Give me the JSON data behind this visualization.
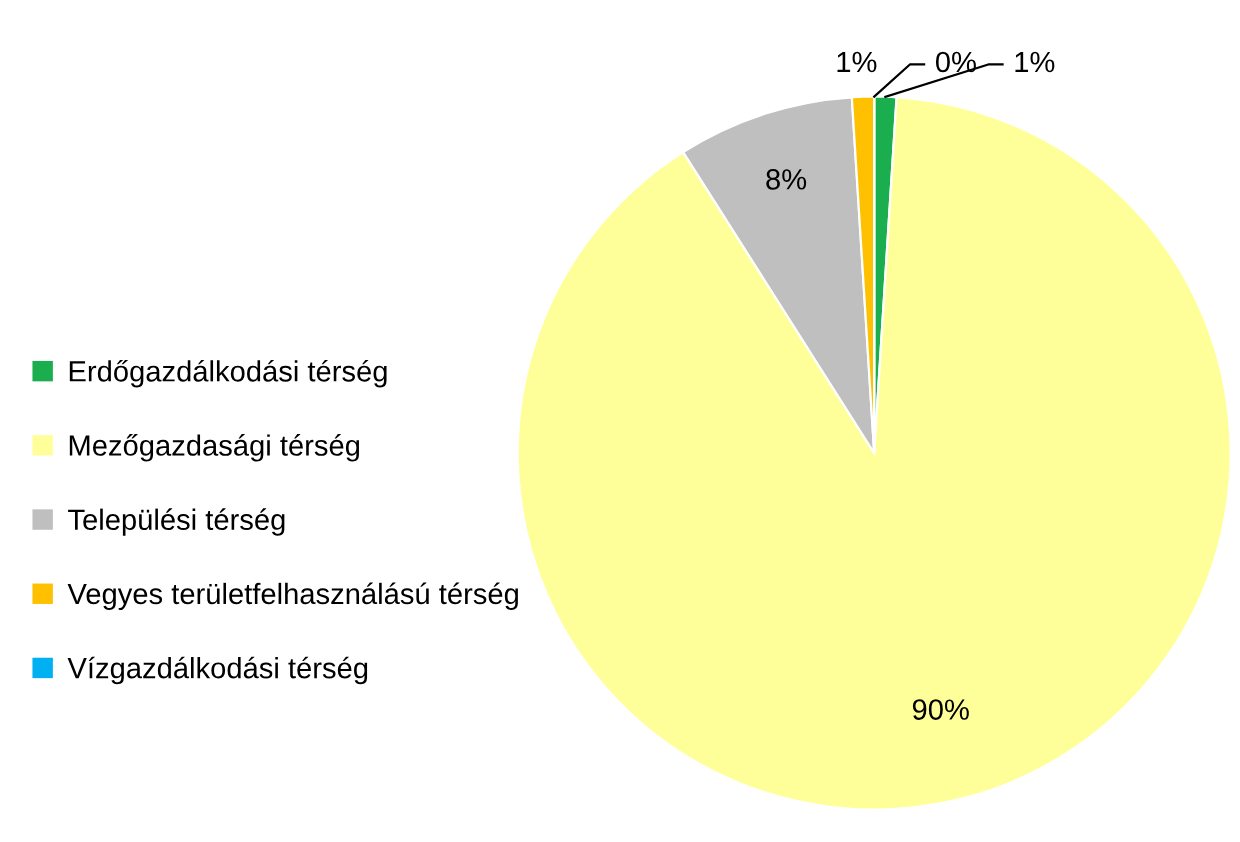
{
  "chart_data": {
    "type": "pie",
    "categories": [
      "Erdőgazdálkodási térség",
      "Mezőgazdasági térség",
      "Települési térség",
      "Vegyes területfelhasználású térség",
      "Vízgazdálkodási térség"
    ],
    "values": [
      1,
      90,
      8,
      1,
      0
    ],
    "colors": [
      "#1aae4f",
      "#ffff99",
      "#bfbfbf",
      "#ffc000",
      "#00b0f0"
    ],
    "value_labels": [
      "1%",
      "90%",
      "8%",
      "1%",
      "0%"
    ],
    "legend": "left"
  }
}
